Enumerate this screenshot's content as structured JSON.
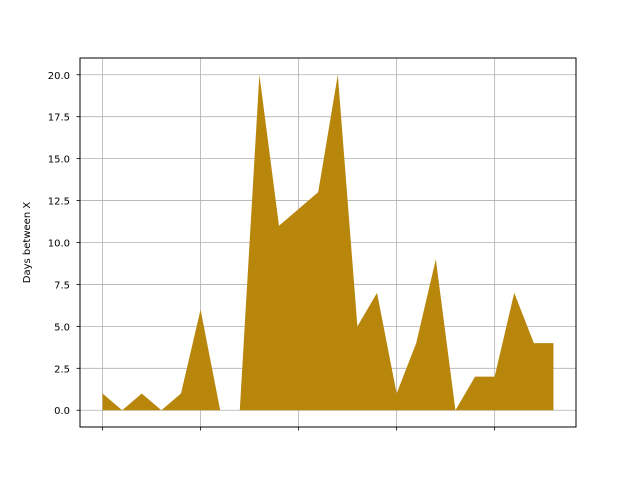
{
  "chart_data": {
    "type": "area",
    "title": "",
    "xlabel": "",
    "ylabel": "Days between X",
    "x": [
      0,
      1,
      2,
      3,
      4,
      5,
      6,
      7,
      8,
      9,
      10,
      11,
      12,
      13,
      14,
      15,
      16,
      17,
      18,
      19,
      20,
      21,
      22,
      23
    ],
    "series": [
      {
        "values": [
          1,
          0,
          1,
          0,
          1,
          6,
          0,
          0,
          20,
          11,
          12,
          13,
          20,
          5,
          7,
          1,
          4,
          9,
          0,
          2,
          2,
          7,
          4,
          4
        ]
      }
    ],
    "xlim": [
      -1.15,
      24.15
    ],
    "ylim": [
      -1,
      21
    ],
    "x_ticks": [
      0,
      5,
      10,
      15,
      20
    ],
    "x_tick_labels": [
      "",
      "",
      "",
      "",
      ""
    ],
    "y_ticks": [
      0,
      2.5,
      5,
      7.5,
      10,
      12.5,
      15,
      17.5,
      20
    ],
    "y_tick_labels": [
      "0.0",
      "2.5",
      "5.0",
      "7.5",
      "10.0",
      "12.5",
      "15.0",
      "17.5",
      "20.0"
    ],
    "grid": true,
    "fill_color": "#b8860b",
    "grid_color": "#b0b0b0"
  }
}
